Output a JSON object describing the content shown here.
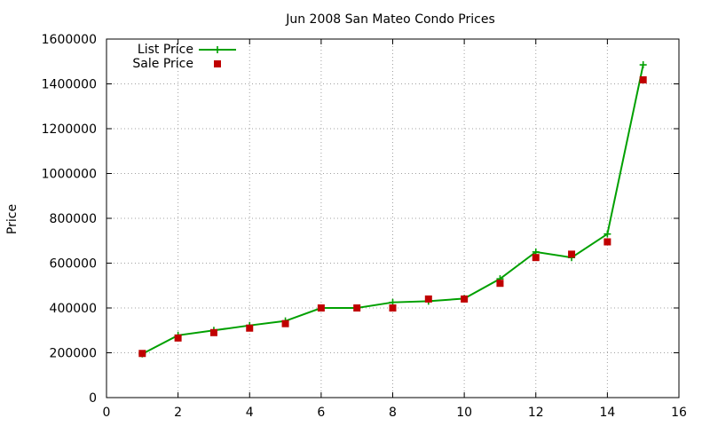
{
  "chart_data": {
    "type": "line",
    "title": "Jun 2008 San Mateo Condo Prices",
    "xlabel": "",
    "ylabel": "Price",
    "xlim": [
      0,
      16
    ],
    "ylim": [
      0,
      1600000
    ],
    "xticks": [
      0,
      2,
      4,
      6,
      8,
      10,
      12,
      14,
      16
    ],
    "yticks": [
      0,
      200000,
      400000,
      600000,
      800000,
      1000000,
      1200000,
      1400000,
      1600000
    ],
    "grid": true,
    "legend_position": "top-left",
    "series": [
      {
        "name": "List Price",
        "style": "lines+points",
        "marker": "plus",
        "color": "#00a000",
        "x": [
          1,
          2,
          3,
          4,
          5,
          6,
          7,
          8,
          9,
          10,
          11,
          12,
          13,
          14,
          15
        ],
        "y": [
          195000,
          278000,
          300000,
          322000,
          342000,
          400000,
          400000,
          425000,
          430000,
          442000,
          530000,
          650000,
          625000,
          730000,
          1485000
        ]
      },
      {
        "name": "Sale Price",
        "style": "points",
        "marker": "square",
        "color": "#c00000",
        "x": [
          1,
          2,
          3,
          4,
          5,
          6,
          7,
          8,
          9,
          10,
          11,
          12,
          13,
          14,
          15
        ],
        "y": [
          197000,
          266000,
          290000,
          310000,
          330000,
          400000,
          400000,
          400000,
          440000,
          440000,
          510000,
          625000,
          640000,
          695000,
          1418000
        ]
      }
    ]
  }
}
